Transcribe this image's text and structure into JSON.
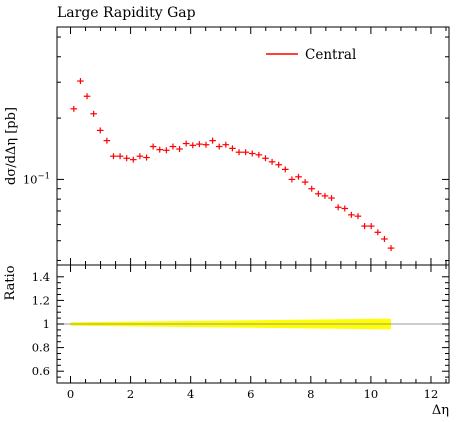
{
  "chart_data": {
    "type": "scatter",
    "title": "Large Rapidity Gap",
    "xlabel": "Δη",
    "ylabel": "dσ/dΔη [pb]",
    "legend": {
      "entries": [
        "Central"
      ],
      "placement": "top-right",
      "color": "#ff0000"
    },
    "main": {
      "yscale": "log",
      "ylim": [
        0.038,
        0.56
      ],
      "yticks": [
        {
          "value": 0.1,
          "label": "10",
          "exponent": "−1"
        }
      ],
      "series": [
        {
          "name": "Central",
          "color": "#ff0000",
          "points": [
            {
              "x": 0.11,
              "y": 0.222
            },
            {
              "x": 0.33,
              "y": 0.304
            },
            {
              "x": 0.55,
              "y": 0.256
            },
            {
              "x": 0.77,
              "y": 0.21
            },
            {
              "x": 0.99,
              "y": 0.174
            },
            {
              "x": 1.21,
              "y": 0.155
            },
            {
              "x": 1.43,
              "y": 0.13
            },
            {
              "x": 1.65,
              "y": 0.13
            },
            {
              "x": 1.87,
              "y": 0.127
            },
            {
              "x": 2.09,
              "y": 0.125
            },
            {
              "x": 2.31,
              "y": 0.13
            },
            {
              "x": 2.53,
              "y": 0.128
            },
            {
              "x": 2.75,
              "y": 0.145
            },
            {
              "x": 2.97,
              "y": 0.14
            },
            {
              "x": 3.19,
              "y": 0.139
            },
            {
              "x": 3.41,
              "y": 0.145
            },
            {
              "x": 3.63,
              "y": 0.141
            },
            {
              "x": 3.85,
              "y": 0.15
            },
            {
              "x": 4.07,
              "y": 0.147
            },
            {
              "x": 4.29,
              "y": 0.149
            },
            {
              "x": 4.51,
              "y": 0.148
            },
            {
              "x": 4.73,
              "y": 0.155
            },
            {
              "x": 4.95,
              "y": 0.145
            },
            {
              "x": 5.17,
              "y": 0.148
            },
            {
              "x": 5.39,
              "y": 0.142
            },
            {
              "x": 5.61,
              "y": 0.136
            },
            {
              "x": 5.83,
              "y": 0.136
            },
            {
              "x": 6.05,
              "y": 0.134
            },
            {
              "x": 6.27,
              "y": 0.132
            },
            {
              "x": 6.49,
              "y": 0.127
            },
            {
              "x": 6.71,
              "y": 0.122
            },
            {
              "x": 6.93,
              "y": 0.118
            },
            {
              "x": 7.15,
              "y": 0.112
            },
            {
              "x": 7.37,
              "y": 0.1
            },
            {
              "x": 7.59,
              "y": 0.103
            },
            {
              "x": 7.81,
              "y": 0.097
            },
            {
              "x": 8.03,
              "y": 0.09
            },
            {
              "x": 8.25,
              "y": 0.085
            },
            {
              "x": 8.47,
              "y": 0.083
            },
            {
              "x": 8.69,
              "y": 0.081
            },
            {
              "x": 8.91,
              "y": 0.073
            },
            {
              "x": 9.13,
              "y": 0.072
            },
            {
              "x": 9.35,
              "y": 0.067
            },
            {
              "x": 9.57,
              "y": 0.066
            },
            {
              "x": 9.79,
              "y": 0.059
            },
            {
              "x": 10.01,
              "y": 0.059
            },
            {
              "x": 10.23,
              "y": 0.055
            },
            {
              "x": 10.45,
              "y": 0.051
            },
            {
              "x": 10.67,
              "y": 0.046
            }
          ]
        }
      ]
    },
    "ratio": {
      "ylabel": "Ratio",
      "ylim": [
        0.5,
        1.5
      ],
      "yticks": [
        {
          "value": 0.6,
          "label": "0.6"
        },
        {
          "value": 0.8,
          "label": "0.8"
        },
        {
          "value": 1.0,
          "label": "1"
        },
        {
          "value": 1.2,
          "label": "1.2"
        },
        {
          "value": 1.4,
          "label": "1.4"
        }
      ],
      "reference": 1.0,
      "band": {
        "color": "#ffff00",
        "x": [
          0.0,
          10.67
        ],
        "lower": [
          0.985,
          0.955
        ],
        "upper": [
          1.015,
          1.045
        ]
      }
    },
    "xlim": [
      -0.45,
      12.6
    ],
    "xticks": [
      {
        "value": 0,
        "label": "0"
      },
      {
        "value": 2,
        "label": "2"
      },
      {
        "value": 4,
        "label": "4"
      },
      {
        "value": 6,
        "label": "6"
      },
      {
        "value": 8,
        "label": "8"
      },
      {
        "value": 10,
        "label": "10"
      },
      {
        "value": 12,
        "label": "12"
      }
    ]
  }
}
